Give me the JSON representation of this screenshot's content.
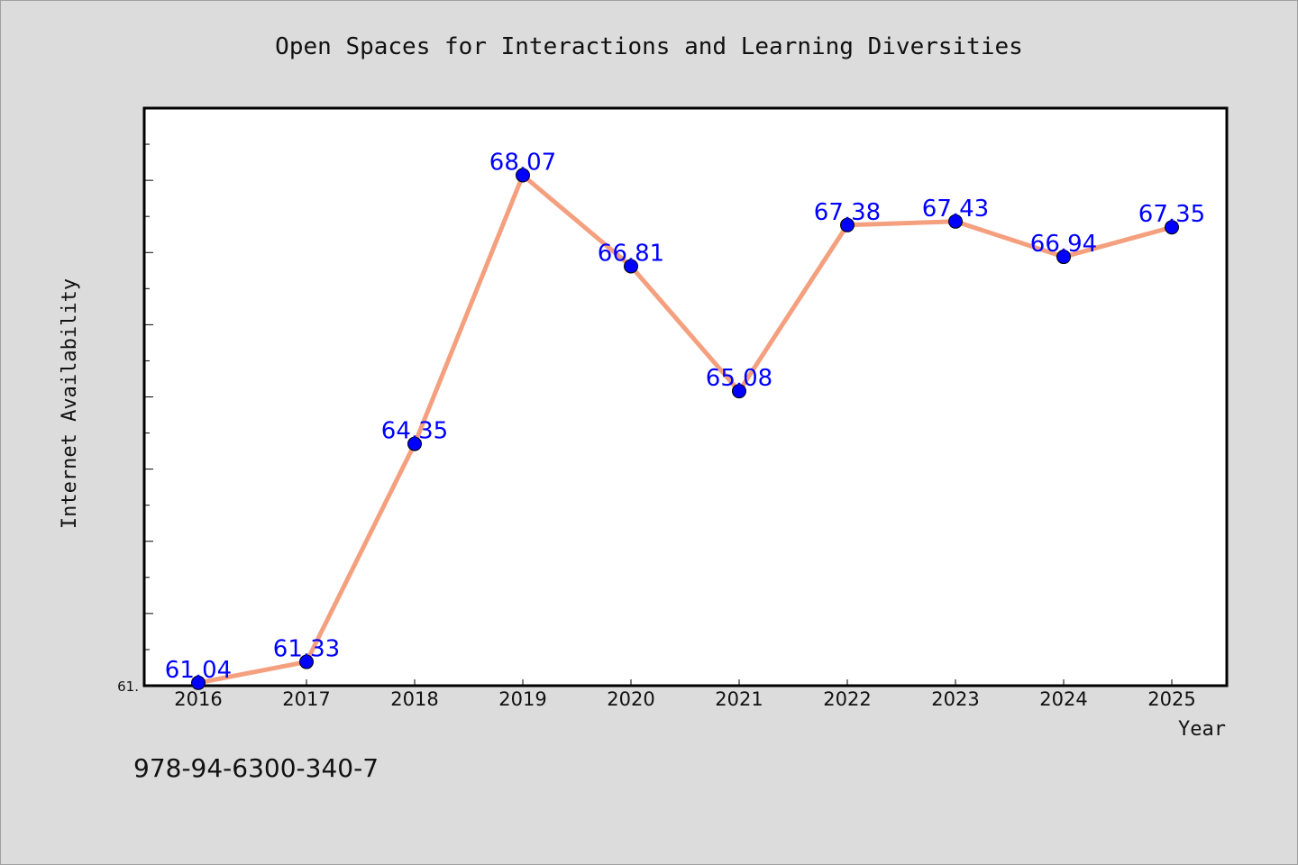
{
  "chart_data": {
    "type": "line",
    "title": "Open Spaces for Interactions and Learning Diversities",
    "xlabel": "Year",
    "ylabel": "Internet Availability",
    "categories": [
      "2016",
      "2017",
      "2018",
      "2019",
      "2020",
      "2021",
      "2022",
      "2023",
      "2024",
      "2025"
    ],
    "series": [
      {
        "values": [
          61.04,
          61.33,
          64.35,
          68.07,
          66.81,
          65.08,
          67.38,
          67.43,
          66.94,
          67.35
        ],
        "labels": [
          "61.04",
          "61.33",
          "64.35",
          "68.07",
          "66.81",
          "65.08",
          "67.38",
          "67.43",
          "66.94",
          "67.35"
        ]
      }
    ],
    "ylim": [
      61.0,
      69.0
    ],
    "ytick_label": "61.",
    "grid": false,
    "legend": "none",
    "colors": {
      "line": "#f4a07f",
      "marker": "#0000ff",
      "label": "#0000ff",
      "background": "#dcdcdc",
      "plot_bg": "#ffffff"
    }
  },
  "footnote": "978-94-6300-340-7"
}
